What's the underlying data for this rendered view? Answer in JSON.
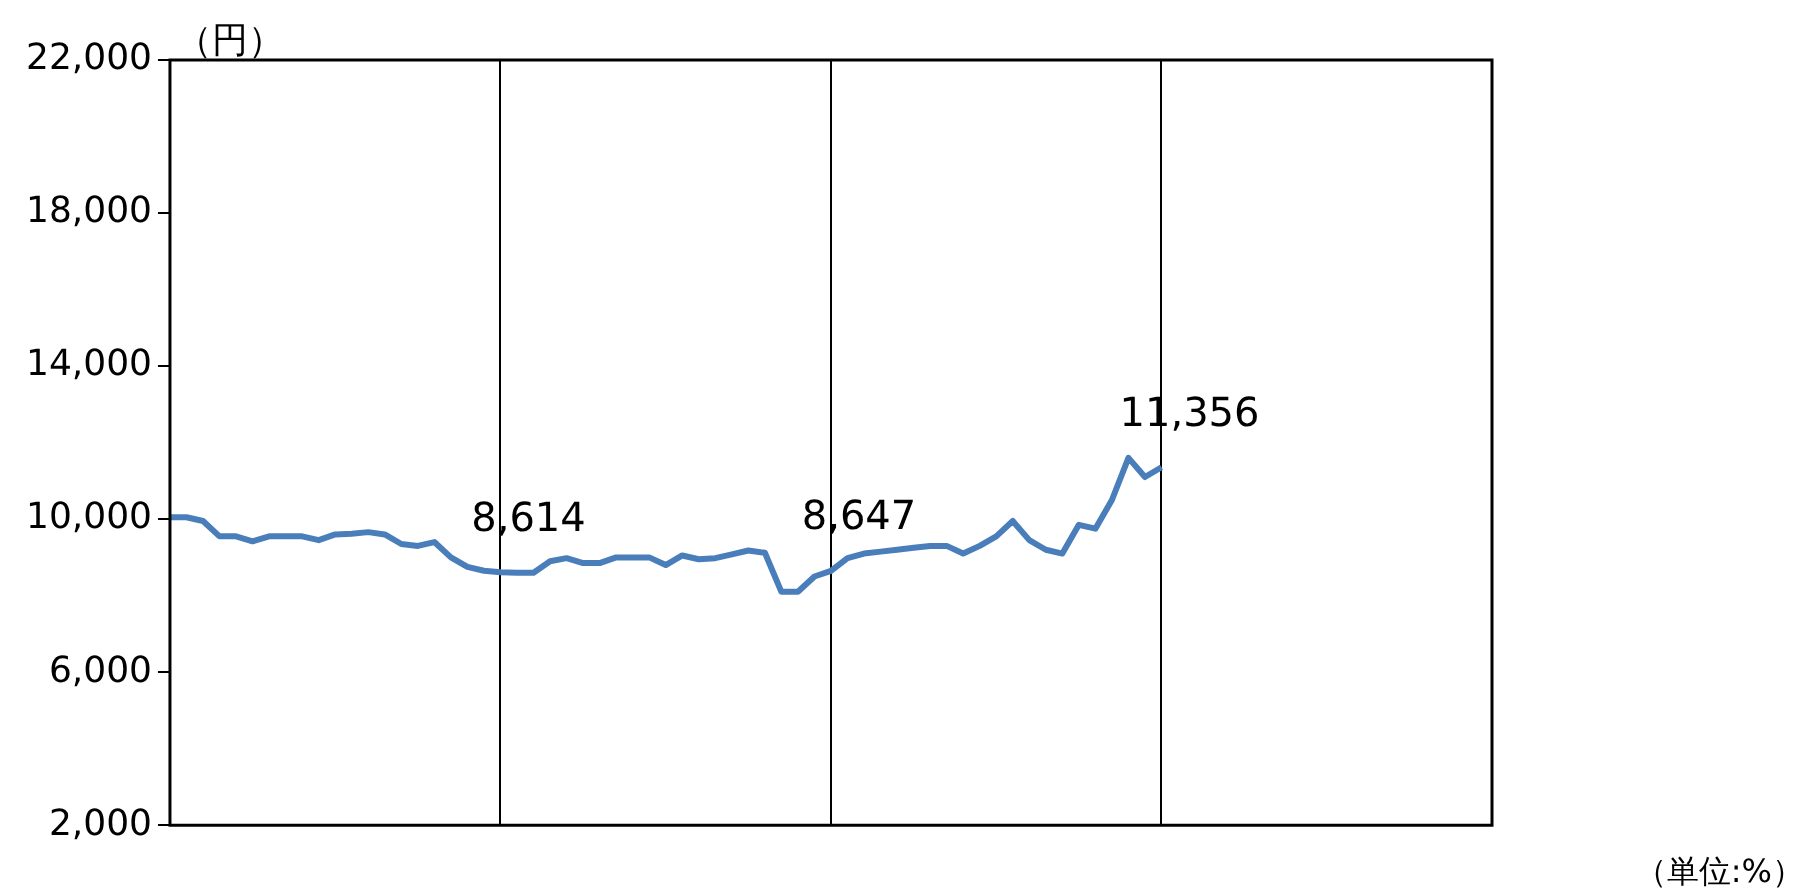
{
  "chart_data": {
    "type": "line",
    "ylabel": "（円）",
    "categories": [
      null,
      null,
      null,
      null,
      null,
      null,
      null,
      null,
      null,
      null,
      null,
      null,
      null,
      null,
      null,
      null,
      null,
      null,
      null,
      null,
      null,
      null,
      null,
      null,
      null,
      null,
      null,
      null,
      null,
      null,
      null,
      null,
      null,
      null,
      null,
      null,
      null,
      null,
      null,
      null,
      null,
      null,
      null,
      null,
      null,
      null,
      null,
      null,
      null,
      null,
      null,
      null,
      null,
      null,
      null,
      null,
      null,
      null,
      null,
      null,
      null,
      null,
      null,
      null,
      null,
      null,
      null,
      null,
      null,
      null,
      null,
      null,
      null,
      null,
      null,
      null,
      null,
      null,
      null,
      null,
      null
    ],
    "series": [
      {
        "color": "#4a7ebb",
        "values": [
          10050,
          10050,
          9950,
          9550,
          9550,
          9420,
          9550,
          9550,
          9550,
          9450,
          9600,
          9620,
          9660,
          9600,
          9350,
          9300,
          9400,
          9000,
          8750,
          8650,
          8614,
          8600,
          8600,
          8900,
          8980,
          8850,
          8850,
          9000,
          9000,
          9000,
          8800,
          9050,
          8950,
          8980,
          9080,
          9180,
          9120,
          8100,
          8100,
          8500,
          8647,
          8980,
          9100,
          9150,
          9200,
          9250,
          9300,
          9300,
          9100,
          9300,
          9550,
          9950,
          9450,
          9200,
          9100,
          9850,
          9750,
          10500,
          11600,
          11100,
          11356,
          null,
          null,
          null,
          null,
          null,
          null,
          null,
          null,
          null,
          null,
          null,
          null,
          null,
          null,
          null,
          null,
          null,
          null,
          null,
          null
        ],
        "value_labels": [
          null,
          null,
          null,
          null,
          null,
          null,
          null,
          null,
          null,
          null,
          null,
          null,
          null,
          null,
          null,
          null,
          null,
          null,
          null,
          null,
          "8,614",
          null,
          null,
          null,
          null,
          null,
          null,
          null,
          null,
          null,
          null,
          null,
          null,
          null,
          null,
          null,
          null,
          null,
          null,
          null,
          "8,647",
          null,
          null,
          null,
          null,
          null,
          null,
          null,
          null,
          null,
          null,
          null,
          null,
          null,
          null,
          null,
          null,
          null,
          null,
          null,
          "11,356",
          null,
          null,
          null,
          null,
          null,
          null,
          null,
          null,
          null,
          null,
          null,
          null,
          null,
          null,
          null,
          null,
          null,
          null,
          null,
          null
        ]
      }
    ],
    "ylim": [
      2000,
      22000
    ],
    "yticks": [
      {
        "value": 2000,
        "label": "2,000"
      },
      {
        "value": 6000,
        "label": "6,000"
      },
      {
        "value": 10000,
        "label": "10,000"
      },
      {
        "value": 14000,
        "label": "14,000"
      },
      {
        "value": 18000,
        "label": "18,000"
      },
      {
        "value": 22000,
        "label": "22,000"
      }
    ],
    "grid": "x",
    "marker": "none",
    "line_style": "solid",
    "annotations": [
      "（単位:%）"
    ]
  }
}
